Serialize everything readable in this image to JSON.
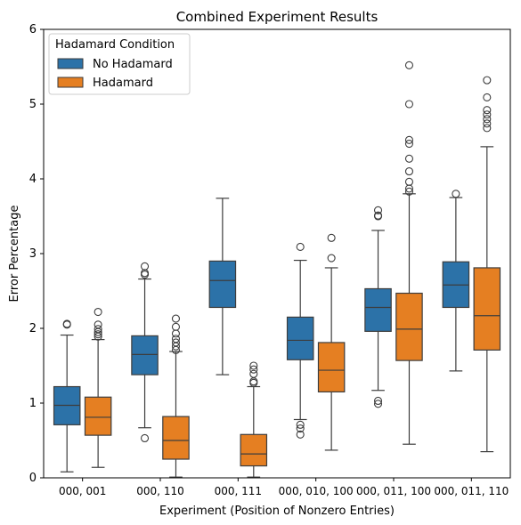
{
  "chart_data": {
    "type": "box",
    "title": "Combined Experiment Results",
    "xlabel": "Experiment (Position of Nonzero Entries)",
    "ylabel": "Error Percentage",
    "ylim": [
      0,
      6
    ],
    "yticks": [
      "0",
      "1",
      "2",
      "3",
      "4",
      "5",
      "6"
    ],
    "categories": [
      "000, 001",
      "000, 110",
      "000, 111",
      "000, 010, 100",
      "000, 011, 100",
      "000, 011, 110"
    ],
    "legend": {
      "title": "Hadamard Condition",
      "placement": "upper left"
    },
    "grid": false,
    "series": [
      {
        "name": "No Hadamard",
        "color": "#2c72a8",
        "boxes": [
          {
            "whisker_low": 0.08,
            "q1": 0.71,
            "median": 0.97,
            "q3": 1.22,
            "whisker_high": 1.91,
            "outliers": [
              2.05,
              2.06
            ]
          },
          {
            "whisker_low": 0.67,
            "q1": 1.38,
            "median": 1.65,
            "q3": 1.9,
            "whisker_high": 2.66,
            "outliers": [
              0.53,
              2.72,
              2.74,
              2.83
            ]
          },
          {
            "whisker_low": 1.38,
            "q1": 2.28,
            "median": 2.64,
            "q3": 2.9,
            "whisker_high": 3.74,
            "outliers": []
          },
          {
            "whisker_low": 0.78,
            "q1": 1.58,
            "median": 1.84,
            "q3": 2.15,
            "whisker_high": 2.91,
            "outliers": [
              0.58,
              0.66,
              0.71,
              3.09
            ]
          },
          {
            "whisker_low": 1.17,
            "q1": 1.96,
            "median": 2.28,
            "q3": 2.53,
            "whisker_high": 3.31,
            "outliers": [
              0.99,
              1.03,
              3.5,
              3.51,
              3.58
            ]
          },
          {
            "whisker_low": 1.43,
            "q1": 2.28,
            "median": 2.58,
            "q3": 2.89,
            "whisker_high": 3.75,
            "outliers": [
              3.8
            ]
          }
        ]
      },
      {
        "name": "Hadamard",
        "color": "#e57f22",
        "boxes": [
          {
            "whisker_low": 0.14,
            "q1": 0.57,
            "median": 0.81,
            "q3": 1.08,
            "whisker_high": 1.85,
            "outliers": [
              1.89,
              1.92,
              1.95,
              1.99,
              2.05,
              2.22
            ]
          },
          {
            "whisker_low": 0.01,
            "q1": 0.25,
            "median": 0.5,
            "q3": 0.82,
            "whisker_high": 1.69,
            "outliers": [
              1.71,
              1.76,
              1.81,
              1.86,
              1.93,
              2.02,
              2.13
            ]
          },
          {
            "whisker_low": 0.01,
            "q1": 0.16,
            "median": 0.32,
            "q3": 0.58,
            "whisker_high": 1.22,
            "outliers": [
              1.27,
              1.29,
              1.39,
              1.45,
              1.5
            ]
          },
          {
            "whisker_low": 0.37,
            "q1": 1.15,
            "median": 1.44,
            "q3": 1.81,
            "whisker_high": 2.81,
            "outliers": [
              2.94,
              3.21
            ]
          },
          {
            "whisker_low": 0.45,
            "q1": 1.57,
            "median": 1.99,
            "q3": 2.47,
            "whisker_high": 3.8,
            "outliers": [
              3.83,
              3.87,
              3.96,
              4.1,
              4.27,
              4.47,
              4.52,
              5.0,
              5.52
            ]
          },
          {
            "whisker_low": 0.35,
            "q1": 1.71,
            "median": 2.17,
            "q3": 2.81,
            "whisker_high": 4.43,
            "outliers": [
              4.68,
              4.74,
              4.8,
              4.86,
              4.92,
              5.09,
              5.32
            ]
          }
        ]
      }
    ]
  }
}
